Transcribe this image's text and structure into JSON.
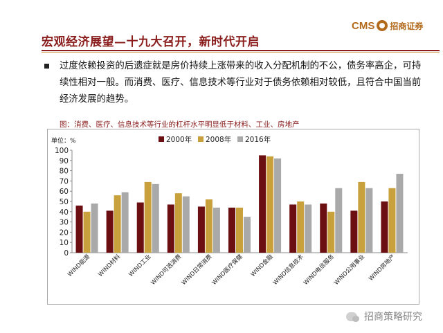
{
  "header": {
    "title": "宏观经济展望—十九大召开，新时代开启",
    "logo_text": "CMS",
    "logo_name": "招商证券"
  },
  "body": {
    "bullet_text": "过度依赖投资的后遗症就是房价持续上涨带来的收入分配机制的不公，债务率高企，可持续性相对一般。而消费、医疗、信息技术等行业对于债务依赖相对较低，且符合中国当前经济发展的趋势。"
  },
  "chart_caption": "图：消费、医疗、信息技术等行业的杠杆水平明显低于材料、工业、房地产",
  "watermark": "招商策略研究",
  "colors": {
    "title": "#8b1d1d",
    "series_2000": "#6b0f12",
    "series_2008": "#c9a13c",
    "series_2016": "#a9a9a9"
  },
  "chart_data": {
    "type": "bar",
    "ylabel": "单位：%",
    "ylim": [
      0,
      100
    ],
    "yticks": [
      0,
      10,
      20,
      30,
      40,
      50,
      60,
      70,
      80,
      90,
      100
    ],
    "grid": false,
    "legend_position": "top",
    "categories": [
      "WIND能源",
      "WIND材料",
      "WIND工业",
      "WIND可选消费",
      "WIND日常消费",
      "WIND医疗保健",
      "WIND金融",
      "WIND信息技术",
      "WIND电信服务",
      "WIND公用事业",
      "WIND房地产"
    ],
    "series": [
      {
        "name": "2000年",
        "color": "#6b0f12",
        "values": [
          46,
          41,
          49,
          47,
          45,
          44,
          95,
          47,
          48,
          41,
          50
        ]
      },
      {
        "name": "2008年",
        "color": "#c9a13c",
        "values": [
          40,
          56,
          69,
          58,
          52,
          44,
          94,
          50,
          40,
          69,
          63
        ]
      },
      {
        "name": "2016年",
        "color": "#a9a9a9",
        "values": [
          48,
          59,
          67,
          55,
          44,
          35,
          92,
          47,
          63,
          63,
          77
        ]
      }
    ]
  }
}
